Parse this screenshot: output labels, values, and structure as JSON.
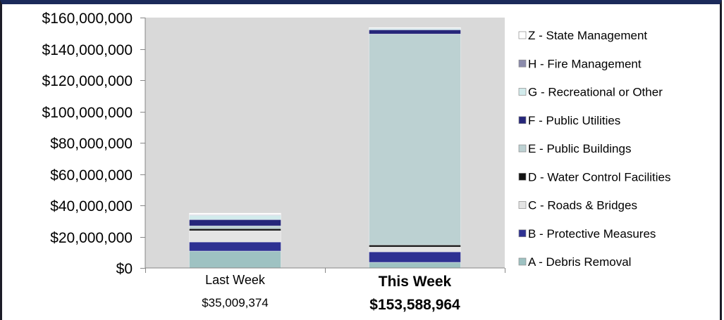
{
  "chart_data": {
    "type": "bar",
    "stacked": true,
    "categories": [
      "Last Week",
      "This Week"
    ],
    "category_total_labels": [
      "$35,009,374",
      "$153,588,964"
    ],
    "ylim": [
      0,
      160000000
    ],
    "yticks": [
      0,
      20000000,
      40000000,
      60000000,
      80000000,
      100000000,
      120000000,
      140000000,
      160000000
    ],
    "ytick_labels": [
      "$0",
      "$20,000,000",
      "$40,000,000",
      "$60,000,000",
      "$80,000,000",
      "$100,000,000",
      "$120,000,000",
      "$140,000,000",
      "$160,000,000"
    ],
    "grid": false,
    "legend": "right",
    "plot_background": "#d9d9d9",
    "series": [
      {
        "name": "A - Debris Removal",
        "color": "#9ec2c2",
        "values": [
          10800000,
          3600000
        ]
      },
      {
        "name": "B - Protective Measures",
        "color": "#2e3192",
        "values": [
          5800000,
          6700000
        ]
      },
      {
        "name": "C - Roads & Bridges",
        "color": "#e4e4e4",
        "values": [
          7200000,
          3100000
        ]
      },
      {
        "name": "D - Water Control Facilities",
        "color": "#111111",
        "values": [
          1300000,
          1300000
        ]
      },
      {
        "name": "E - Public Buildings",
        "color": "#bcd1d2",
        "values": [
          1800000,
          134800000
        ]
      },
      {
        "name": "F - Public Utilities",
        "color": "#26277a",
        "values": [
          4000000,
          2700000
        ]
      },
      {
        "name": "G - Recreational or Other",
        "color": "#d2ebec",
        "values": [
          2700000,
          900000
        ]
      },
      {
        "name": "H - Fire Management",
        "color": "#8a8aab",
        "values": [
          400000,
          200000
        ]
      },
      {
        "name": "Z - State Management",
        "color": "#ffffff",
        "values": [
          1000000,
          300000
        ]
      }
    ]
  }
}
